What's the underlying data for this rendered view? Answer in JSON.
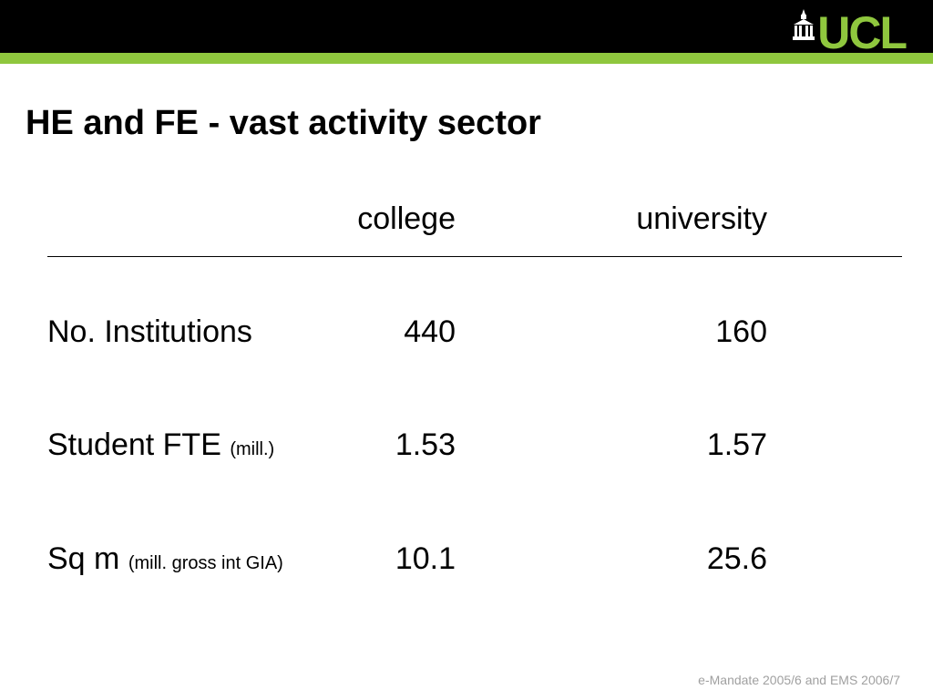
{
  "header": {
    "logo_text": "UCL",
    "bar_color": "#000000",
    "accent_color": "#8fc73e"
  },
  "slide": {
    "title": "HE and FE - vast activity sector"
  },
  "table": {
    "columns": [
      "college",
      "university"
    ],
    "rows": [
      {
        "label": "No. Institutions",
        "note": "",
        "college": "440",
        "university": "160"
      },
      {
        "label": "Student FTE",
        "note": "(mill.)",
        "college": "1.53",
        "university": "1.57"
      },
      {
        "label": "Sq m",
        "note": "(mill. gross int GIA)",
        "college": "10.1",
        "university": "25.6"
      }
    ]
  },
  "footer": {
    "text": "e-Mandate 2005/6 and EMS 2006/7"
  }
}
